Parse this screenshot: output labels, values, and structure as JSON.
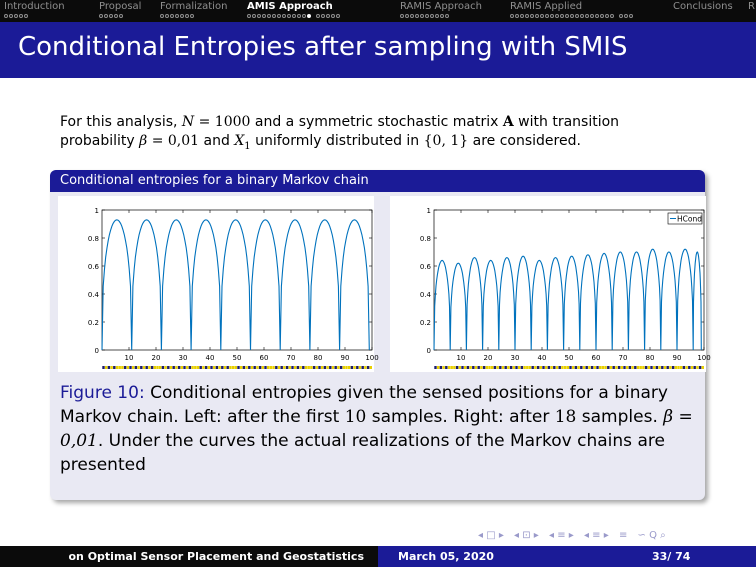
{
  "nav": {
    "sections": [
      {
        "label": "Introduction",
        "dots": [
          5
        ],
        "active": false
      },
      {
        "label": "Proposal",
        "dots": [
          5
        ],
        "active": false
      },
      {
        "label": "Formalization",
        "dots": [
          7
        ],
        "active": false
      },
      {
        "label": "AMIS Approach",
        "dots": [
          13,
          5
        ],
        "active": true,
        "current_dot": 13
      },
      {
        "label": "RAMIS Approach",
        "dots": [
          10
        ],
        "active": false
      },
      {
        "label": "RAMIS Applied",
        "dots": [
          21,
          3
        ],
        "active": false
      },
      {
        "label": "Conclusions",
        "dots": [],
        "active": false
      },
      {
        "label": "R",
        "dots": [],
        "active": false
      }
    ]
  },
  "title": "Conditional Entropies after sampling with SMIS",
  "intro": {
    "t1": "For this analysis, ",
    "m1": "N",
    "m1b": " = 1000",
    "t2": " and a symmetric stochastic matrix ",
    "m2": "A",
    "t3": " with transition probability ",
    "m3": "β",
    "m3b": " = 0,01",
    "t4": " and ",
    "m4": "X",
    "m4sub": "1",
    "t5": " uniformly distributed in ",
    "m5": "{0, 1}",
    "t6": " are considered."
  },
  "block": {
    "title": "Conditional entropies for a binary Markov chain"
  },
  "caption": {
    "fig_label": "Figure 10:",
    "c1": " Conditional entropies given the sensed positions for a binary Markov chain. Left: after the first ",
    "m1": "10",
    "c2": " samples. Right: after ",
    "m2": "18",
    "c3": " samples. ",
    "m3": "β = 0,01",
    "c4": ". Under the curves the actual realizations of the Markov chains are presented"
  },
  "chart_data": [
    {
      "type": "line",
      "title": "",
      "xlabel": "",
      "ylabel": "",
      "xlim": [
        0,
        100
      ],
      "ylim": [
        0,
        1
      ],
      "xticks": [
        10,
        20,
        30,
        40,
        50,
        60,
        70,
        80,
        90,
        100
      ],
      "yticks": [
        0,
        0.2,
        0.4,
        0.6,
        0.8,
        1
      ],
      "sample_positions": [
        0,
        11,
        22,
        33,
        44,
        55,
        66,
        77,
        88,
        99
      ],
      "peak_values": [
        0.93,
        0.93,
        0.93,
        0.93,
        0.93,
        0.93,
        0.93,
        0.93,
        0.93
      ],
      "series_color": "#0072bd",
      "realization_colors": {
        "0": "#1c1c6e",
        "1": "#e8d000"
      }
    },
    {
      "type": "line",
      "title": "",
      "xlabel": "",
      "ylabel": "",
      "xlim": [
        0,
        100
      ],
      "ylim": [
        0,
        1
      ],
      "xticks": [
        10,
        20,
        30,
        40,
        50,
        60,
        70,
        80,
        90,
        100
      ],
      "yticks": [
        0,
        0.2,
        0.4,
        0.6,
        0.8,
        1
      ],
      "legend": {
        "entries": [
          "HCond"
        ],
        "position": "top-right"
      },
      "sample_positions": [
        0,
        6,
        12,
        18,
        24,
        30,
        36,
        42,
        48,
        54,
        60,
        66,
        72,
        78,
        84,
        90,
        96,
        99
      ],
      "peak_values": [
        0.64,
        0.62,
        0.66,
        0.64,
        0.66,
        0.67,
        0.64,
        0.66,
        0.67,
        0.68,
        0.69,
        0.7,
        0.7,
        0.72,
        0.7,
        0.72,
        0.7
      ],
      "series_color": "#0072bd",
      "realization_colors": {
        "0": "#1c1c6e",
        "1": "#e8d000"
      }
    }
  ],
  "nav_symbols": [
    "◂ □ ▸",
    "◂ ⊡ ▸",
    "◂ ≡ ▸",
    "◂ ≡ ▸",
    "≡",
    "∽ Q ⌕"
  ],
  "footer": {
    "left": "on Optimal Sensor Placement and Geostatistics",
    "date": "March 05, 2020",
    "page": "33/ 74"
  }
}
